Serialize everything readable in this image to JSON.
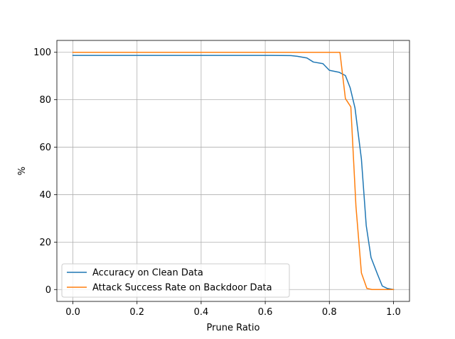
{
  "chart_data": {
    "type": "line",
    "title": "",
    "xlabel": "Prune Ratio",
    "ylabel": "%",
    "xlim": [
      -0.05,
      1.05
    ],
    "ylim": [
      -5,
      105
    ],
    "xticks": [
      0.0,
      0.2,
      0.4,
      0.6,
      0.8,
      1.0
    ],
    "xtick_labels": [
      "0.0",
      "0.2",
      "0.4",
      "0.6",
      "0.8",
      "1.0"
    ],
    "yticks": [
      0,
      20,
      40,
      60,
      80,
      100
    ],
    "ytick_labels": [
      "0",
      "20",
      "40",
      "60",
      "80",
      "100"
    ],
    "grid": true,
    "legend_position": "lower-left",
    "series": [
      {
        "name": "Accuracy on Clean Data",
        "color": "#1f77b4",
        "x": [
          0.0,
          0.1,
          0.2,
          0.3,
          0.4,
          0.5,
          0.6,
          0.68,
          0.7,
          0.73,
          0.75,
          0.78,
          0.8,
          0.83,
          0.85,
          0.865,
          0.88,
          0.9,
          0.915,
          0.93,
          0.95,
          0.965,
          0.98,
          1.0
        ],
        "values": [
          98.7,
          98.7,
          98.7,
          98.7,
          98.7,
          98.7,
          98.7,
          98.6,
          98.3,
          97.6,
          95.9,
          95.2,
          92.4,
          91.6,
          90.2,
          85.0,
          76.5,
          55.0,
          27.0,
          13.5,
          6.5,
          1.5,
          0.5,
          0.0
        ]
      },
      {
        "name": "Attack Success Rate on Backdoor Data",
        "color": "#ff7f0e",
        "x": [
          0.0,
          0.2,
          0.4,
          0.6,
          0.8,
          0.833,
          0.85,
          0.867,
          0.883,
          0.9,
          0.917,
          0.933,
          0.95,
          1.0
        ],
        "values": [
          100.0,
          100.0,
          100.0,
          100.0,
          100.0,
          100.0,
          80.5,
          77.0,
          35.0,
          7.0,
          0.5,
          0.0,
          0.0,
          0.0
        ]
      }
    ]
  }
}
